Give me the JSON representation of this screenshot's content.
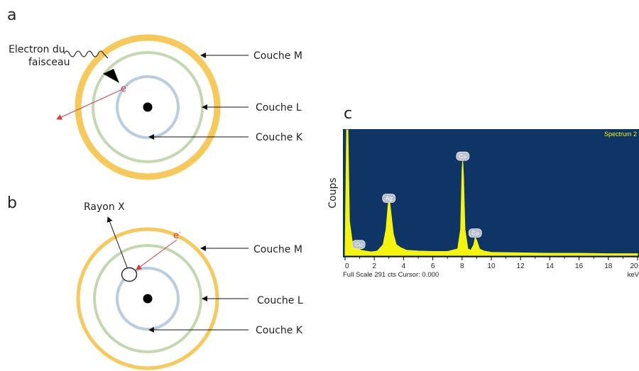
{
  "colors": {
    "shell_m": "#F6C95A",
    "shell_l": "#C5D7AE",
    "shell_k": "#B9CCE0",
    "arrow_red": "#D43B3B",
    "spectrum_bg": "#0E3566",
    "spectrum_fill": "#F4F40E"
  },
  "panel_a": {
    "letter": "a",
    "beam_label_line1": "Electron du",
    "beam_label_line2": "faisceau",
    "electron": "e",
    "electron_sup": "-",
    "shell_m": "Couche M",
    "shell_l": "Couche L",
    "shell_k": "Couche K"
  },
  "panel_b": {
    "letter": "b",
    "xray_label": "Rayon X",
    "electron": "e",
    "electron_sup": "-",
    "shell_m": "Couche M",
    "shell_l": "Couche L",
    "shell_k": "Couche K"
  },
  "panel_c": {
    "letter": "c",
    "ylabel": "Coups",
    "spectrum_name": "Spectrum 2",
    "footer_left": "Full Scale 291 cts Cursor: 0.000",
    "footer_right": "keV",
    "peaks": [
      {
        "label": "Cu",
        "x": 0.93
      },
      {
        "label": "Ag",
        "x": 3.0
      },
      {
        "label": "Cu",
        "x": 8.05
      },
      {
        "label": "Cu",
        "x": 8.9
      }
    ]
  },
  "chart_data": {
    "type": "area",
    "title": "Spectrum 2",
    "xlabel": "keV",
    "ylabel": "Coups",
    "xlim": [
      0,
      20
    ],
    "ylim": [
      0,
      291
    ],
    "xticks": [
      "0",
      "2",
      "4",
      "6",
      "8",
      "10",
      "12",
      "14",
      "16",
      "18",
      "20"
    ],
    "x": [
      0,
      0.1,
      0.2,
      0.3,
      0.5,
      0.7,
      0.9,
      1.1,
      1.4,
      1.8,
      2.2,
      2.6,
      2.8,
      2.95,
      3.05,
      3.15,
      3.3,
      3.5,
      3.8,
      4.2,
      5,
      6,
      7,
      7.7,
      7.9,
      8.0,
      8.05,
      8.1,
      8.2,
      8.4,
      8.6,
      8.8,
      8.9,
      9.0,
      9.2,
      9.5,
      10,
      12,
      14,
      16,
      18,
      20
    ],
    "values": [
      5,
      291,
      291,
      80,
      30,
      18,
      16,
      12,
      10,
      8,
      10,
      25,
      60,
      120,
      125,
      95,
      50,
      25,
      18,
      12,
      10,
      9,
      9,
      15,
      60,
      200,
      220,
      180,
      60,
      15,
      12,
      25,
      42,
      35,
      15,
      10,
      7,
      6,
      5,
      5,
      4,
      4
    ]
  }
}
